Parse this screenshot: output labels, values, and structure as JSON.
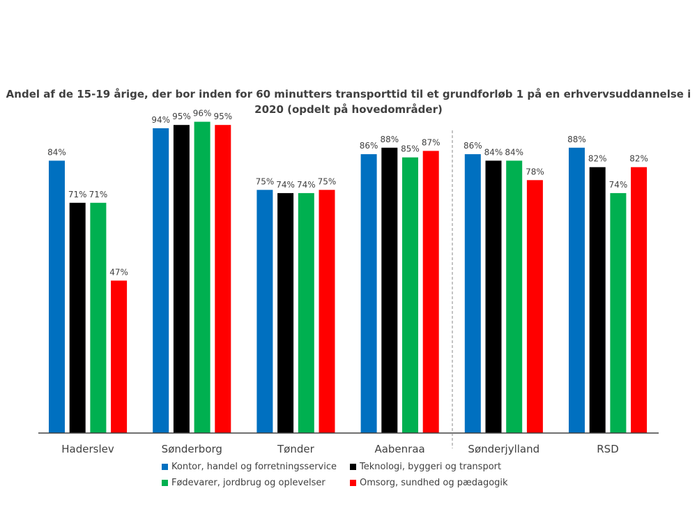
{
  "chart_data": {
    "type": "bar",
    "title": "Andel af de 15-19 årige, der bor inden for 60 minutters transporttid til et grundforløb 1 på en erhvervsuddannelse i 2020 (opdelt på hovedområder)",
    "categories": [
      "Haderslev",
      "Sønderborg",
      "Tønder",
      "Aabenraa",
      "Sønderjylland",
      "RSD"
    ],
    "series": [
      {
        "name": "Kontor, handel og forretningsservice",
        "color": "#0070C0",
        "values": [
          84,
          94,
          75,
          86,
          86,
          88
        ],
        "labels": [
          "84%",
          "94%",
          "75%",
          "86%",
          "86%",
          "88%"
        ]
      },
      {
        "name": "Teknologi, byggeri og transport",
        "color": "#000000",
        "values": [
          71,
          95,
          74,
          88,
          84,
          82
        ],
        "labels": [
          "71%",
          "95%",
          "74%",
          "88%",
          "84%",
          "82%"
        ]
      },
      {
        "name": "Fødevarer, jordbrug og oplevelser",
        "color": "#00B050",
        "values": [
          71,
          96,
          74,
          85,
          84,
          74
        ],
        "labels": [
          "71%",
          "96%",
          "74%",
          "85%",
          "84%",
          "74%"
        ]
      },
      {
        "name": "Omsorg, sundhed og pædagogik",
        "color": "#FF0000",
        "values": [
          47,
          95,
          75,
          87,
          78,
          82
        ],
        "labels": [
          "47%",
          "95%",
          "75%",
          "87%",
          "78%",
          "82%"
        ]
      }
    ],
    "ylim": [
      0,
      100
    ],
    "xlabel": "",
    "ylabel": "",
    "grid": false,
    "separator_after_category": "Aabenraa",
    "legend_position": "bottom"
  }
}
